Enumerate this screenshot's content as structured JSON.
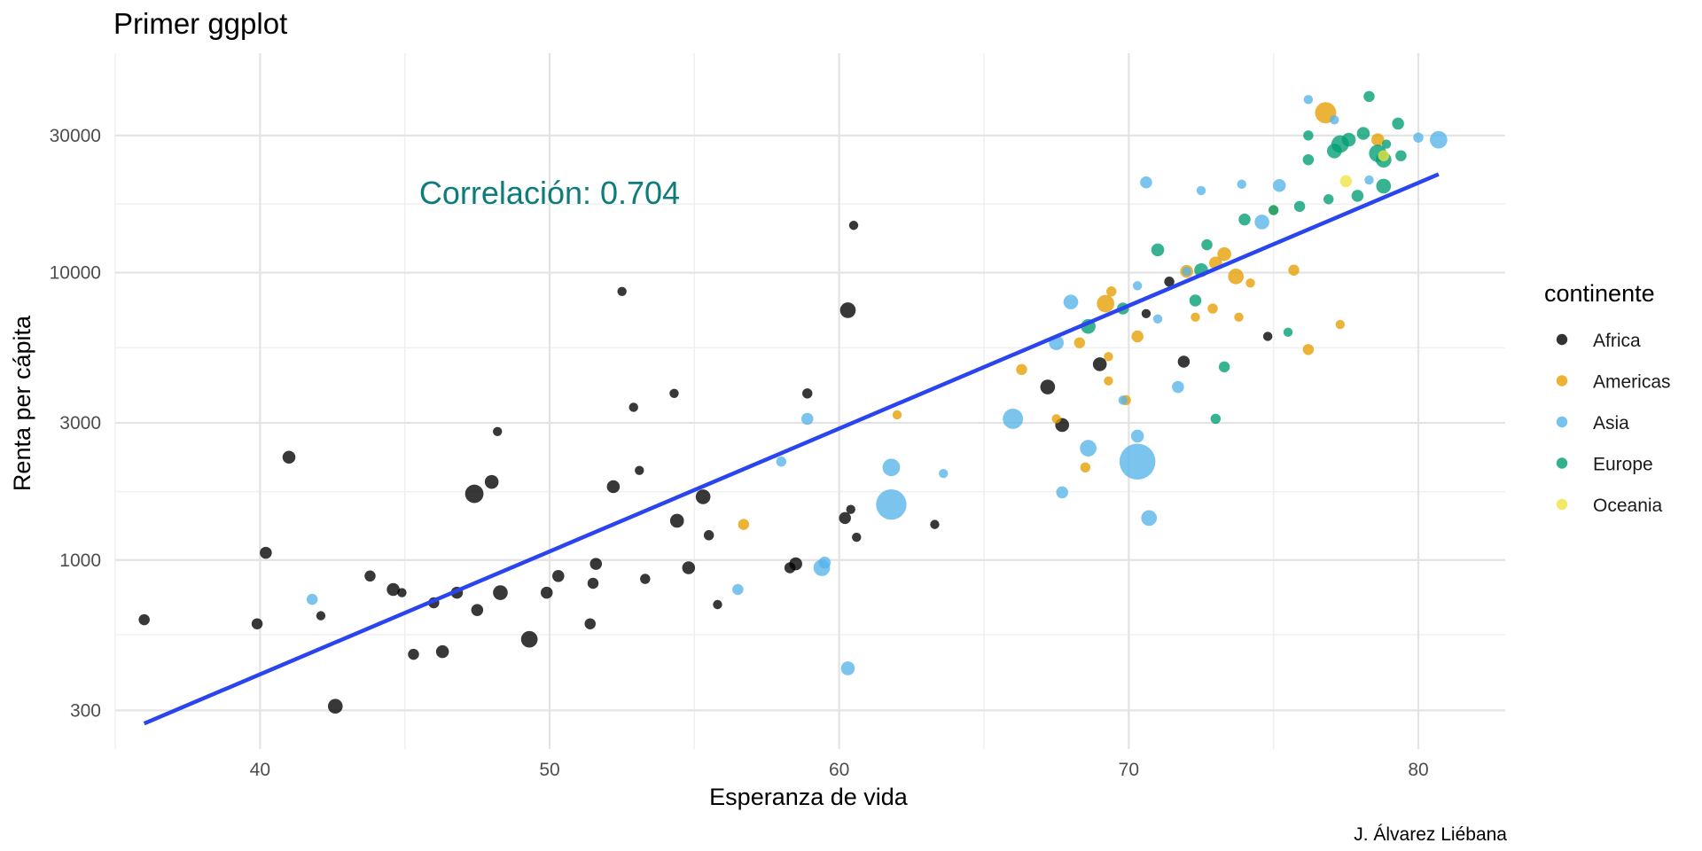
{
  "chart_data": {
    "type": "scatter",
    "title": "Primer ggplot",
    "xlabel": "Esperanza de vida",
    "ylabel": "Renta per cápita",
    "caption": "J. Álvarez Liébana",
    "annotation": {
      "text": "Correlación: 0.704",
      "x": 50,
      "y": 19000,
      "color": "#0e7c7b"
    },
    "x_axis": {
      "min": 35,
      "max": 83,
      "ticks": [
        40,
        50,
        60,
        70,
        80
      ],
      "minor_ticks": [
        35,
        45,
        55,
        65,
        75
      ]
    },
    "y_axis": {
      "scale": "log10",
      "min": 220,
      "max": 58000,
      "ticks": [
        300,
        1000,
        3000,
        10000,
        30000
      ],
      "tick_labels": [
        "300",
        "1000",
        "3000",
        "10000",
        "30000"
      ],
      "minor_ticks": [
        550,
        1730,
        5480,
        17320
      ]
    },
    "grid": true,
    "legend": {
      "title": "continente",
      "position": "right",
      "items": [
        {
          "name": "Africa",
          "color": "#000000"
        },
        {
          "name": "Americas",
          "color": "#E69F00"
        },
        {
          "name": "Asia",
          "color": "#56B4E9"
        },
        {
          "name": "Europe",
          "color": "#009E73"
        },
        {
          "name": "Oceania",
          "color": "#F0E442"
        }
      ]
    },
    "trend_line": {
      "color": "#2a45f0",
      "x": [
        36.0,
        80.7
      ],
      "y": [
        270,
        22000
      ]
    },
    "series": [
      {
        "name": "Africa",
        "color": "#000000",
        "points": [
          {
            "x": 36.0,
            "y": 620,
            "size": 1.2
          },
          {
            "x": 39.9,
            "y": 600,
            "size": 1.2
          },
          {
            "x": 40.2,
            "y": 1060,
            "size": 1.3
          },
          {
            "x": 41.0,
            "y": 2280,
            "size": 1.4
          },
          {
            "x": 42.1,
            "y": 640,
            "size": 1.0
          },
          {
            "x": 42.6,
            "y": 310,
            "size": 1.6
          },
          {
            "x": 43.8,
            "y": 880,
            "size": 1.2
          },
          {
            "x": 44.6,
            "y": 790,
            "size": 1.4
          },
          {
            "x": 44.9,
            "y": 770,
            "size": 1.0
          },
          {
            "x": 45.3,
            "y": 470,
            "size": 1.2
          },
          {
            "x": 46.0,
            "y": 710,
            "size": 1.2
          },
          {
            "x": 46.3,
            "y": 480,
            "size": 1.4
          },
          {
            "x": 46.8,
            "y": 770,
            "size": 1.3
          },
          {
            "x": 47.4,
            "y": 1700,
            "size": 2.0
          },
          {
            "x": 47.5,
            "y": 670,
            "size": 1.3
          },
          {
            "x": 48.0,
            "y": 1870,
            "size": 1.5
          },
          {
            "x": 48.2,
            "y": 2800,
            "size": 1.0
          },
          {
            "x": 48.3,
            "y": 770,
            "size": 1.6
          },
          {
            "x": 49.3,
            "y": 530,
            "size": 1.8
          },
          {
            "x": 49.9,
            "y": 770,
            "size": 1.3
          },
          {
            "x": 50.3,
            "y": 880,
            "size": 1.3
          },
          {
            "x": 51.4,
            "y": 600,
            "size": 1.2
          },
          {
            "x": 51.5,
            "y": 830,
            "size": 1.2
          },
          {
            "x": 51.6,
            "y": 970,
            "size": 1.3
          },
          {
            "x": 52.2,
            "y": 1800,
            "size": 1.4
          },
          {
            "x": 52.5,
            "y": 8600,
            "size": 1.0
          },
          {
            "x": 52.9,
            "y": 3400,
            "size": 1.0
          },
          {
            "x": 53.1,
            "y": 2050,
            "size": 1.0
          },
          {
            "x": 53.3,
            "y": 860,
            "size": 1.1
          },
          {
            "x": 54.3,
            "y": 3800,
            "size": 1.0
          },
          {
            "x": 54.4,
            "y": 1370,
            "size": 1.5
          },
          {
            "x": 54.8,
            "y": 940,
            "size": 1.4
          },
          {
            "x": 55.3,
            "y": 1660,
            "size": 1.6
          },
          {
            "x": 55.5,
            "y": 1220,
            "size": 1.1
          },
          {
            "x": 55.8,
            "y": 700,
            "size": 1.0
          },
          {
            "x": 58.3,
            "y": 940,
            "size": 1.2
          },
          {
            "x": 58.5,
            "y": 970,
            "size": 1.4
          },
          {
            "x": 58.9,
            "y": 3800,
            "size": 1.1
          },
          {
            "x": 60.2,
            "y": 1400,
            "size": 1.3
          },
          {
            "x": 60.3,
            "y": 7400,
            "size": 1.7
          },
          {
            "x": 60.4,
            "y": 1500,
            "size": 1.0
          },
          {
            "x": 60.5,
            "y": 14600,
            "size": 1.0
          },
          {
            "x": 60.6,
            "y": 1200,
            "size": 1.0
          },
          {
            "x": 63.3,
            "y": 1330,
            "size": 1.0
          },
          {
            "x": 67.2,
            "y": 4000,
            "size": 1.6
          },
          {
            "x": 67.7,
            "y": 2950,
            "size": 1.5
          },
          {
            "x": 69.0,
            "y": 4800,
            "size": 1.5
          },
          {
            "x": 70.6,
            "y": 7200,
            "size": 1.0
          },
          {
            "x": 71.4,
            "y": 9300,
            "size": 1.1
          },
          {
            "x": 71.9,
            "y": 4900,
            "size": 1.3
          },
          {
            "x": 74.8,
            "y": 6000,
            "size": 1.0
          }
        ]
      },
      {
        "name": "Americas",
        "color": "#E69F00",
        "points": [
          {
            "x": 56.7,
            "y": 1330,
            "size": 1.2
          },
          {
            "x": 62.0,
            "y": 3200,
            "size": 1.0
          },
          {
            "x": 66.3,
            "y": 4600,
            "size": 1.2
          },
          {
            "x": 67.5,
            "y": 3100,
            "size": 1.0
          },
          {
            "x": 68.3,
            "y": 5700,
            "size": 1.2
          },
          {
            "x": 68.5,
            "y": 2100,
            "size": 1.1
          },
          {
            "x": 69.2,
            "y": 7800,
            "size": 1.9
          },
          {
            "x": 69.3,
            "y": 5100,
            "size": 1.0
          },
          {
            "x": 69.3,
            "y": 4200,
            "size": 1.0
          },
          {
            "x": 69.4,
            "y": 8600,
            "size": 1.1
          },
          {
            "x": 69.9,
            "y": 3600,
            "size": 1.1
          },
          {
            "x": 70.3,
            "y": 6000,
            "size": 1.3
          },
          {
            "x": 72.0,
            "y": 10100,
            "size": 1.4
          },
          {
            "x": 72.3,
            "y": 7000,
            "size": 1.0
          },
          {
            "x": 72.9,
            "y": 7500,
            "size": 1.1
          },
          {
            "x": 73.0,
            "y": 10800,
            "size": 1.4
          },
          {
            "x": 73.3,
            "y": 11600,
            "size": 1.5
          },
          {
            "x": 73.7,
            "y": 9700,
            "size": 1.7
          },
          {
            "x": 73.8,
            "y": 7000,
            "size": 1.0
          },
          {
            "x": 74.2,
            "y": 9200,
            "size": 1.0
          },
          {
            "x": 75.0,
            "y": 16500,
            "size": 1.0
          },
          {
            "x": 75.7,
            "y": 10200,
            "size": 1.2
          },
          {
            "x": 76.2,
            "y": 5400,
            "size": 1.2
          },
          {
            "x": 76.8,
            "y": 36000,
            "size": 2.3
          },
          {
            "x": 77.3,
            "y": 6600,
            "size": 1.0
          },
          {
            "x": 78.6,
            "y": 29000,
            "size": 1.4
          }
        ]
      },
      {
        "name": "Asia",
        "color": "#56B4E9",
        "points": [
          {
            "x": 41.8,
            "y": 730,
            "size": 1.2
          },
          {
            "x": 56.5,
            "y": 790,
            "size": 1.2
          },
          {
            "x": 58.0,
            "y": 2200,
            "size": 1.1
          },
          {
            "x": 58.9,
            "y": 3100,
            "size": 1.3
          },
          {
            "x": 59.4,
            "y": 940,
            "size": 1.8
          },
          {
            "x": 59.5,
            "y": 980,
            "size": 1.3
          },
          {
            "x": 60.3,
            "y": 420,
            "size": 1.5
          },
          {
            "x": 61.8,
            "y": 1560,
            "size": 3.3
          },
          {
            "x": 61.8,
            "y": 2100,
            "size": 1.9
          },
          {
            "x": 63.6,
            "y": 2000,
            "size": 1.0
          },
          {
            "x": 66.0,
            "y": 3100,
            "size": 2.2
          },
          {
            "x": 67.5,
            "y": 5700,
            "size": 1.6
          },
          {
            "x": 67.7,
            "y": 1720,
            "size": 1.3
          },
          {
            "x": 68.0,
            "y": 7900,
            "size": 1.6
          },
          {
            "x": 68.6,
            "y": 2450,
            "size": 1.8
          },
          {
            "x": 69.8,
            "y": 3600,
            "size": 1.0
          },
          {
            "x": 70.3,
            "y": 9000,
            "size": 1.0
          },
          {
            "x": 70.3,
            "y": 2200,
            "size": 3.9
          },
          {
            "x": 70.3,
            "y": 2700,
            "size": 1.4
          },
          {
            "x": 70.6,
            "y": 20600,
            "size": 1.3
          },
          {
            "x": 70.7,
            "y": 1400,
            "size": 1.7
          },
          {
            "x": 71.0,
            "y": 6900,
            "size": 1.0
          },
          {
            "x": 71.7,
            "y": 4000,
            "size": 1.3
          },
          {
            "x": 72.0,
            "y": 10100,
            "size": 1.0
          },
          {
            "x": 72.5,
            "y": 19300,
            "size": 1.0
          },
          {
            "x": 73.9,
            "y": 20300,
            "size": 1.0
          },
          {
            "x": 74.6,
            "y": 15000,
            "size": 1.6
          },
          {
            "x": 75.2,
            "y": 20100,
            "size": 1.4
          },
          {
            "x": 76.2,
            "y": 40000,
            "size": 1.0
          },
          {
            "x": 77.1,
            "y": 34000,
            "size": 1.0
          },
          {
            "x": 78.3,
            "y": 21000,
            "size": 1.0
          },
          {
            "x": 80.0,
            "y": 29500,
            "size": 1.1
          },
          {
            "x": 80.7,
            "y": 29000,
            "size": 1.9
          }
        ]
      },
      {
        "name": "Europe",
        "color": "#009E73",
        "points": [
          {
            "x": 68.6,
            "y": 6500,
            "size": 1.6
          },
          {
            "x": 69.8,
            "y": 7500,
            "size": 1.3
          },
          {
            "x": 71.0,
            "y": 12000,
            "size": 1.4
          },
          {
            "x": 72.3,
            "y": 8000,
            "size": 1.3
          },
          {
            "x": 72.5,
            "y": 10200,
            "size": 1.5
          },
          {
            "x": 72.7,
            "y": 12500,
            "size": 1.2
          },
          {
            "x": 73.3,
            "y": 4700,
            "size": 1.2
          },
          {
            "x": 74.0,
            "y": 15300,
            "size": 1.3
          },
          {
            "x": 75.0,
            "y": 16500,
            "size": 1.1
          },
          {
            "x": 75.5,
            "y": 6200,
            "size": 1.0
          },
          {
            "x": 75.9,
            "y": 17000,
            "size": 1.2
          },
          {
            "x": 76.2,
            "y": 24700,
            "size": 1.2
          },
          {
            "x": 76.2,
            "y": 30000,
            "size": 1.1
          },
          {
            "x": 76.9,
            "y": 18000,
            "size": 1.1
          },
          {
            "x": 77.1,
            "y": 26500,
            "size": 1.6
          },
          {
            "x": 77.3,
            "y": 28000,
            "size": 1.9
          },
          {
            "x": 77.6,
            "y": 29000,
            "size": 1.5
          },
          {
            "x": 77.9,
            "y": 18500,
            "size": 1.3
          },
          {
            "x": 78.1,
            "y": 30500,
            "size": 1.4
          },
          {
            "x": 78.3,
            "y": 41000,
            "size": 1.2
          },
          {
            "x": 78.6,
            "y": 26000,
            "size": 1.9
          },
          {
            "x": 78.8,
            "y": 24700,
            "size": 1.7
          },
          {
            "x": 78.9,
            "y": 28000,
            "size": 1.0
          },
          {
            "x": 79.3,
            "y": 33000,
            "size": 1.3
          },
          {
            "x": 78.8,
            "y": 20000,
            "size": 1.6
          },
          {
            "x": 79.4,
            "y": 25500,
            "size": 1.2
          },
          {
            "x": 73.0,
            "y": 3100,
            "size": 1.1
          }
        ]
      },
      {
        "name": "Oceania",
        "color": "#F0E442",
        "points": [
          {
            "x": 77.5,
            "y": 20800,
            "size": 1.3
          },
          {
            "x": 78.8,
            "y": 25500,
            "size": 1.2
          }
        ]
      }
    ]
  }
}
